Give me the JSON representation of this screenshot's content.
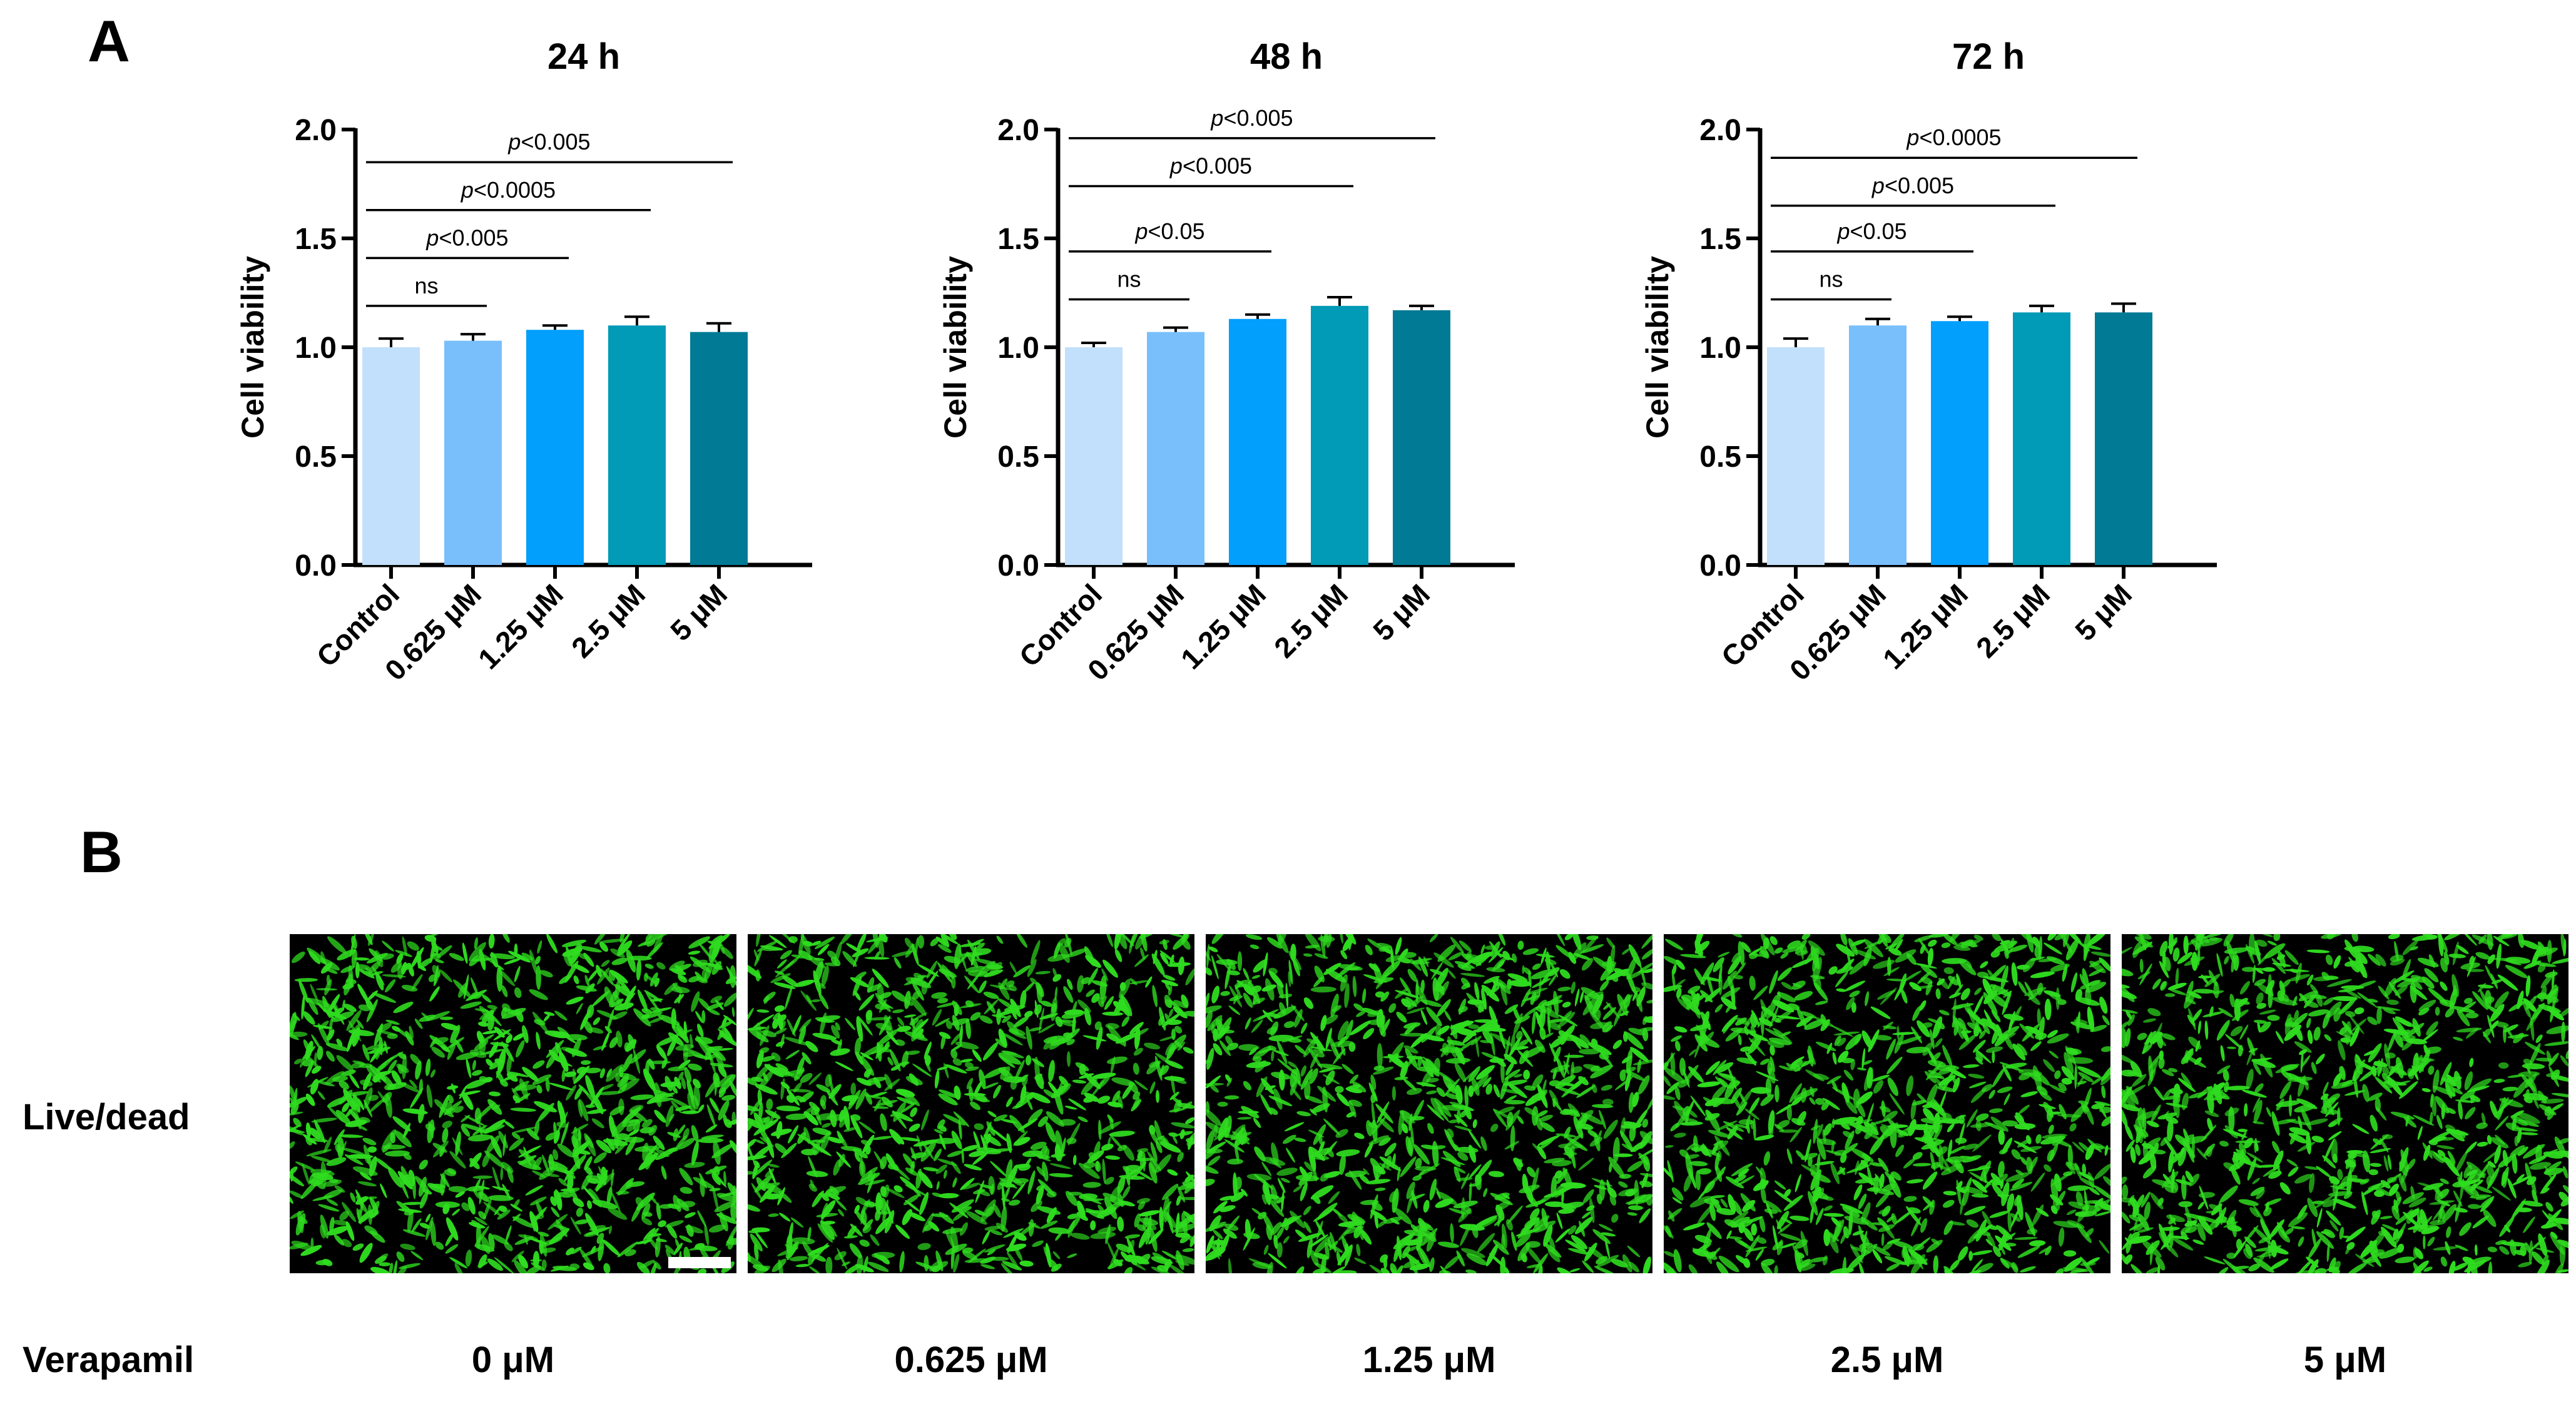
{
  "panels": {
    "a_label": "A",
    "b_label": "B"
  },
  "colors": {
    "bars": [
      "#c2e0fb",
      "#79bffc",
      "#039ffc",
      "#019ab7",
      "#007a95"
    ],
    "cells": "#2fdc1f",
    "background_micro": "#000000"
  },
  "chart_data": [
    {
      "type": "bar",
      "title": "24 h",
      "xlabel": "",
      "ylabel": "Cell viability",
      "ylim": [
        0,
        2.0
      ],
      "yticks": [
        "0.0",
        "0.5",
        "1.0",
        "1.5",
        "2.0"
      ],
      "categories": [
        "Control",
        "0.625 μM",
        "1.25 μM",
        "2.5 μM",
        "5 μM"
      ],
      "values": [
        1.0,
        1.03,
        1.08,
        1.1,
        1.07
      ],
      "errors": [
        0.04,
        0.03,
        0.02,
        0.04,
        0.04
      ],
      "comparisons": [
        {
          "from": 0,
          "to": 1,
          "y": 1.19,
          "prefix": "",
          "text": "ns"
        },
        {
          "from": 0,
          "to": 2,
          "y": 1.41,
          "prefix": "p",
          "text": "<0.005"
        },
        {
          "from": 0,
          "to": 3,
          "y": 1.63,
          "prefix": "p",
          "text": "<0.0005"
        },
        {
          "from": 0,
          "to": 4,
          "y": 1.85,
          "prefix": "p",
          "text": "<0.005"
        }
      ]
    },
    {
      "type": "bar",
      "title": "48 h",
      "xlabel": "",
      "ylabel": "Cell viability",
      "ylim": [
        0,
        2.0
      ],
      "yticks": [
        "0.0",
        "0.5",
        "1.0",
        "1.5",
        "2.0"
      ],
      "categories": [
        "Control",
        "0.625 μM",
        "1.25 μM",
        "2.5 μM",
        "5 μM"
      ],
      "values": [
        1.0,
        1.07,
        1.13,
        1.19,
        1.17
      ],
      "errors": [
        0.02,
        0.02,
        0.02,
        0.04,
        0.02
      ],
      "comparisons": [
        {
          "from": 0,
          "to": 1,
          "y": 1.22,
          "prefix": "",
          "text": "ns"
        },
        {
          "from": 0,
          "to": 2,
          "y": 1.44,
          "prefix": "p",
          "text": "<0.05"
        },
        {
          "from": 0,
          "to": 3,
          "y": 1.74,
          "prefix": "p",
          "text": "<0.005"
        },
        {
          "from": 0,
          "to": 4,
          "y": 1.96,
          "prefix": "p",
          "text": "<0.005"
        }
      ]
    },
    {
      "type": "bar",
      "title": "72 h",
      "xlabel": "",
      "ylabel": "Cell viability",
      "ylim": [
        0,
        2.0
      ],
      "yticks": [
        "0.0",
        "0.5",
        "1.0",
        "1.5",
        "2.0"
      ],
      "categories": [
        "Control",
        "0.625 μM",
        "1.25 μM",
        "2.5 μM",
        "5 μM"
      ],
      "values": [
        1.0,
        1.1,
        1.12,
        1.16,
        1.16
      ],
      "errors": [
        0.04,
        0.03,
        0.02,
        0.03,
        0.04
      ],
      "comparisons": [
        {
          "from": 0,
          "to": 1,
          "y": 1.22,
          "prefix": "",
          "text": "ns"
        },
        {
          "from": 0,
          "to": 2,
          "y": 1.44,
          "prefix": "p",
          "text": "<0.05"
        },
        {
          "from": 0,
          "to": 3,
          "y": 1.65,
          "prefix": "p",
          "text": "<0.005"
        },
        {
          "from": 0,
          "to": 4,
          "y": 1.87,
          "prefix": "p",
          "text": "<0.0005"
        }
      ]
    }
  ],
  "panel_b": {
    "row_label": "Live/dead",
    "condition_label": "Verapamil",
    "conditions": [
      "0 μM",
      "0.625 μM",
      "1.25 μM",
      "2.5 μM",
      "5 μM"
    ]
  }
}
